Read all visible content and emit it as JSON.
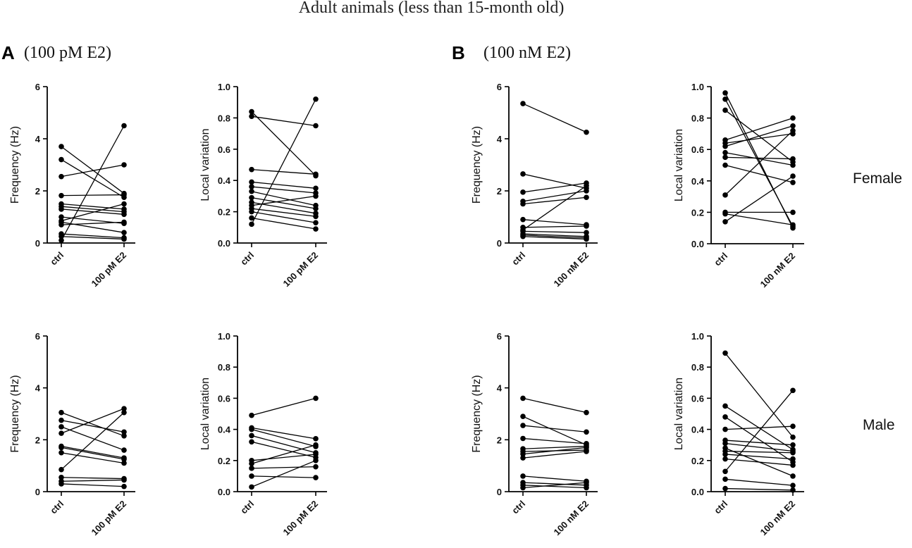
{
  "figure": {
    "title": "Adult animals (less than 15-month old)",
    "panel_a": {
      "letter": "A",
      "condition": "(100 pM E2)"
    },
    "panel_b": {
      "letter": "B",
      "condition": "(100 nM E2)"
    },
    "rows": {
      "female": "Female",
      "male": "Male"
    }
  },
  "colors": {
    "ink": "#000000",
    "line": "#000000"
  },
  "chart_data": [
    {
      "id": "A-female-frequency",
      "type": "line",
      "ylabel": "Frequency (Hz)",
      "categories": [
        "ctrl",
        "100 pM E2"
      ],
      "ylim": [
        0,
        6
      ],
      "yticks": [
        0,
        2,
        4,
        6
      ],
      "pairs": [
        [
          3.7,
          1.9
        ],
        [
          3.2,
          1.75
        ],
        [
          2.55,
          3.0
        ],
        [
          1.82,
          1.85
        ],
        [
          1.5,
          1.3
        ],
        [
          1.4,
          1.2
        ],
        [
          1.3,
          1.1
        ],
        [
          1.0,
          0.75
        ],
        [
          0.85,
          1.5
        ],
        [
          0.8,
          0.4
        ],
        [
          0.7,
          0.8
        ],
        [
          0.35,
          0.2
        ],
        [
          0.25,
          0.15
        ],
        [
          0.1,
          4.5
        ]
      ]
    },
    {
      "id": "A-female-local-variation",
      "type": "line",
      "ylabel": "Local variation",
      "categories": [
        "ctrl",
        "100 pM E2"
      ],
      "ylim": [
        0,
        1.0
      ],
      "yticks": [
        0.0,
        0.2,
        0.4,
        0.6,
        0.8,
        1.0
      ],
      "pairs": [
        [
          0.84,
          0.43
        ],
        [
          0.81,
          0.75
        ],
        [
          0.47,
          0.44
        ],
        [
          0.39,
          0.35
        ],
        [
          0.36,
          0.32
        ],
        [
          0.33,
          0.24
        ],
        [
          0.29,
          0.22
        ],
        [
          0.26,
          0.19
        ],
        [
          0.24,
          0.3
        ],
        [
          0.22,
          0.17
        ],
        [
          0.2,
          0.13
        ],
        [
          0.16,
          0.09
        ],
        [
          0.12,
          0.92
        ]
      ]
    },
    {
      "id": "B-female-frequency",
      "type": "line",
      "ylabel": "Frequency (Hz)",
      "categories": [
        "ctrl",
        "100 nM E2"
      ],
      "ylim": [
        0,
        6
      ],
      "yticks": [
        0,
        2,
        4,
        6
      ],
      "pairs": [
        [
          5.35,
          4.25
        ],
        [
          2.65,
          2.1
        ],
        [
          1.95,
          2.3
        ],
        [
          1.6,
          2.0
        ],
        [
          1.5,
          1.75
        ],
        [
          0.9,
          0.7
        ],
        [
          0.6,
          0.65
        ],
        [
          0.5,
          2.2
        ],
        [
          0.45,
          0.4
        ],
        [
          0.35,
          0.25
        ],
        [
          0.3,
          0.2
        ],
        [
          0.25,
          0.15
        ]
      ]
    },
    {
      "id": "B-female-local-variation",
      "type": "line",
      "ylabel": "Local variation",
      "categories": [
        "ctrl",
        "100 nM E2"
      ],
      "ylim": [
        0,
        1.0
      ],
      "yticks": [
        0.0,
        0.2,
        0.4,
        0.6,
        0.8,
        1.0
      ],
      "pairs": [
        [
          0.96,
          0.1
        ],
        [
          0.92,
          0.11
        ],
        [
          0.85,
          0.52
        ],
        [
          0.66,
          0.8
        ],
        [
          0.64,
          0.7
        ],
        [
          0.62,
          0.75
        ],
        [
          0.58,
          0.5
        ],
        [
          0.55,
          0.54
        ],
        [
          0.5,
          0.39
        ],
        [
          0.31,
          0.72
        ],
        [
          0.2,
          0.2
        ],
        [
          0.19,
          0.12
        ],
        [
          0.14,
          0.43
        ]
      ]
    },
    {
      "id": "A-male-frequency",
      "type": "line",
      "ylabel": "Frequency (Hz)",
      "categories": [
        "ctrl",
        "100 pM E2"
      ],
      "ylim": [
        0,
        6
      ],
      "yticks": [
        0,
        2,
        4,
        6
      ],
      "pairs": [
        [
          3.05,
          2.15
        ],
        [
          2.75,
          2.3
        ],
        [
          2.5,
          1.6
        ],
        [
          2.25,
          3.2
        ],
        [
          1.75,
          1.3
        ],
        [
          1.7,
          1.25
        ],
        [
          1.5,
          1.1
        ],
        [
          0.85,
          3.05
        ],
        [
          0.55,
          0.5
        ],
        [
          0.4,
          0.45
        ],
        [
          0.3,
          0.2
        ]
      ]
    },
    {
      "id": "A-male-local-variation",
      "type": "line",
      "ylabel": "Local variation",
      "categories": [
        "ctrl",
        "100 pM E2"
      ],
      "ylim": [
        0,
        1.0
      ],
      "yticks": [
        0.0,
        0.2,
        0.4,
        0.6,
        0.8,
        1.0
      ],
      "pairs": [
        [
          0.49,
          0.6
        ],
        [
          0.41,
          0.34
        ],
        [
          0.4,
          0.29
        ],
        [
          0.36,
          0.25
        ],
        [
          0.32,
          0.22
        ],
        [
          0.2,
          0.24
        ],
        [
          0.18,
          0.3
        ],
        [
          0.15,
          0.16
        ],
        [
          0.1,
          0.09
        ],
        [
          0.03,
          0.2
        ]
      ]
    },
    {
      "id": "B-male-frequency",
      "type": "line",
      "ylabel": "Frequency (Hz)",
      "categories": [
        "ctrl",
        "100 nM E2"
      ],
      "ylim": [
        0,
        6
      ],
      "yticks": [
        0,
        2,
        4,
        6
      ],
      "pairs": [
        [
          3.6,
          3.05
        ],
        [
          2.9,
          1.8
        ],
        [
          2.55,
          2.3
        ],
        [
          2.05,
          1.85
        ],
        [
          1.65,
          1.75
        ],
        [
          1.55,
          1.6
        ],
        [
          1.45,
          1.7
        ],
        [
          1.3,
          1.55
        ],
        [
          0.6,
          0.4
        ],
        [
          0.35,
          0.25
        ],
        [
          0.25,
          0.15
        ],
        [
          0.15,
          0.35
        ]
      ]
    },
    {
      "id": "B-male-local-variation",
      "type": "line",
      "ylabel": "Local variation",
      "categories": [
        "ctrl",
        "100 nM E2"
      ],
      "ylim": [
        0,
        1.0
      ],
      "yticks": [
        0.0,
        0.2,
        0.4,
        0.6,
        0.8,
        1.0
      ],
      "pairs": [
        [
          0.89,
          0.35
        ],
        [
          0.55,
          0.27
        ],
        [
          0.48,
          0.19
        ],
        [
          0.4,
          0.42
        ],
        [
          0.33,
          0.3
        ],
        [
          0.31,
          0.26
        ],
        [
          0.28,
          0.1
        ],
        [
          0.26,
          0.25
        ],
        [
          0.24,
          0.21
        ],
        [
          0.21,
          0.17
        ],
        [
          0.13,
          0.65
        ],
        [
          0.08,
          0.04
        ],
        [
          0.02,
          0.01
        ]
      ]
    }
  ]
}
